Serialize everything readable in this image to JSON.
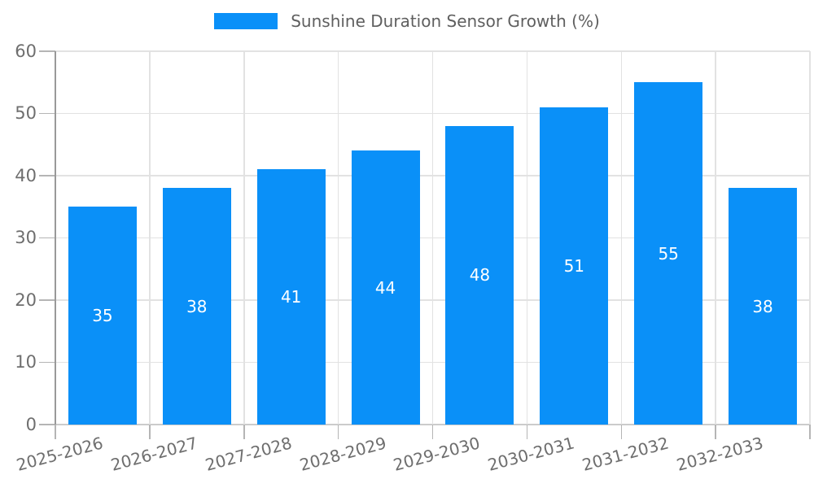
{
  "chart_data": {
    "type": "bar",
    "title": "Sunshine Duration Sensor Growth (%)",
    "categories": [
      "2025-2026",
      "2026-2027",
      "2027-2028",
      "2028-2029",
      "2029-2030",
      "2030-2031",
      "2031-2032",
      "2032-2033"
    ],
    "values": [
      35,
      38,
      41,
      44,
      48,
      51,
      55,
      38
    ],
    "series": [
      {
        "name": "Sunshine Duration Sensor Growth (%)",
        "values": [
          35,
          38,
          41,
          44,
          48,
          51,
          55,
          38
        ]
      }
    ],
    "xlabel": "",
    "ylabel": "",
    "ylim": [
      0,
      60
    ],
    "yticks": [
      0,
      10,
      20,
      30,
      40,
      50,
      60
    ],
    "grid": true,
    "legend_position": "top-center",
    "value_labels": "inside-center",
    "colors": {
      "bar": "#0a90f8",
      "value_label": "#ffffff",
      "tick_label": "#6e6e6e",
      "legend_text": "#5f5f5f",
      "grid_line": "#e2e2e2",
      "axis_line": "#999999",
      "baseline": "#cbcbcb",
      "tick_mark": "#b5b5b5",
      "background": "#ffffff"
    }
  },
  "legend": {
    "items": [
      {
        "label": "Sunshine Duration Sensor Growth (%)",
        "color": "#0a90f8"
      }
    ]
  }
}
